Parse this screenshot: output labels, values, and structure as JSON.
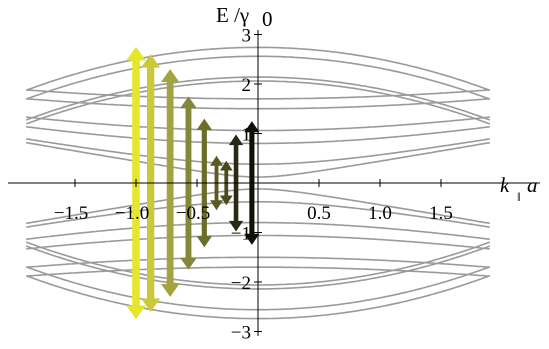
{
  "chart_data": {
    "type": "line",
    "title": "",
    "xlabel": {
      "main": "k",
      "subscript": "‖",
      "tail": "a"
    },
    "ylabel": {
      "main": "E /γ",
      "tail": "0"
    },
    "xlim": [
      -1.9,
      1.9
    ],
    "ylim": [
      -3.05,
      3.05
    ],
    "xticks": [
      -1.5,
      -1.0,
      -0.5,
      0.5,
      1.0,
      1.5
    ],
    "xtick_labels": [
      "−1.5",
      "−1.0",
      "−0.5",
      "0.5",
      "1.0",
      "1.5"
    ],
    "yticks": [
      -3,
      -2,
      -1,
      1,
      2,
      3
    ],
    "ytick_labels": [
      "−3",
      "−2",
      "−1",
      "1",
      "2",
      "3"
    ],
    "grid": false,
    "line_color": "#9a9a9a",
    "band_model": {
      "x0": [
        0.12,
        0.38,
        0.8,
        1.06,
        1.5,
        1.7,
        2.06,
        2.14,
        2.56,
        2.74
      ],
      "t": 1.0
    },
    "arrows": [
      {
        "x": -1.0,
        "y_min": -2.75,
        "y_max": 2.75,
        "color": "#e6e62e"
      },
      {
        "x": -0.88,
        "y_min": -2.6,
        "y_max": 2.6,
        "color": "#c9c93a"
      },
      {
        "x": -0.72,
        "y_min": -2.3,
        "y_max": 2.3,
        "color": "#a3a33f"
      },
      {
        "x": -0.57,
        "y_min": -1.75,
        "y_max": 1.75,
        "color": "#86863a"
      },
      {
        "x": -0.44,
        "y_min": -1.3,
        "y_max": 1.3,
        "color": "#6d6d2a"
      },
      {
        "x": -0.34,
        "y_min": -0.55,
        "y_max": 0.55,
        "color": "#5a5a22"
      },
      {
        "x": -0.26,
        "y_min": -0.45,
        "y_max": 0.45,
        "color": "#4a4a1c"
      },
      {
        "x": -0.18,
        "y_min": -0.98,
        "y_max": 0.98,
        "color": "#2a2a12"
      },
      {
        "x": -0.05,
        "y_min": -1.25,
        "y_max": 1.25,
        "color": "#101008"
      }
    ]
  }
}
